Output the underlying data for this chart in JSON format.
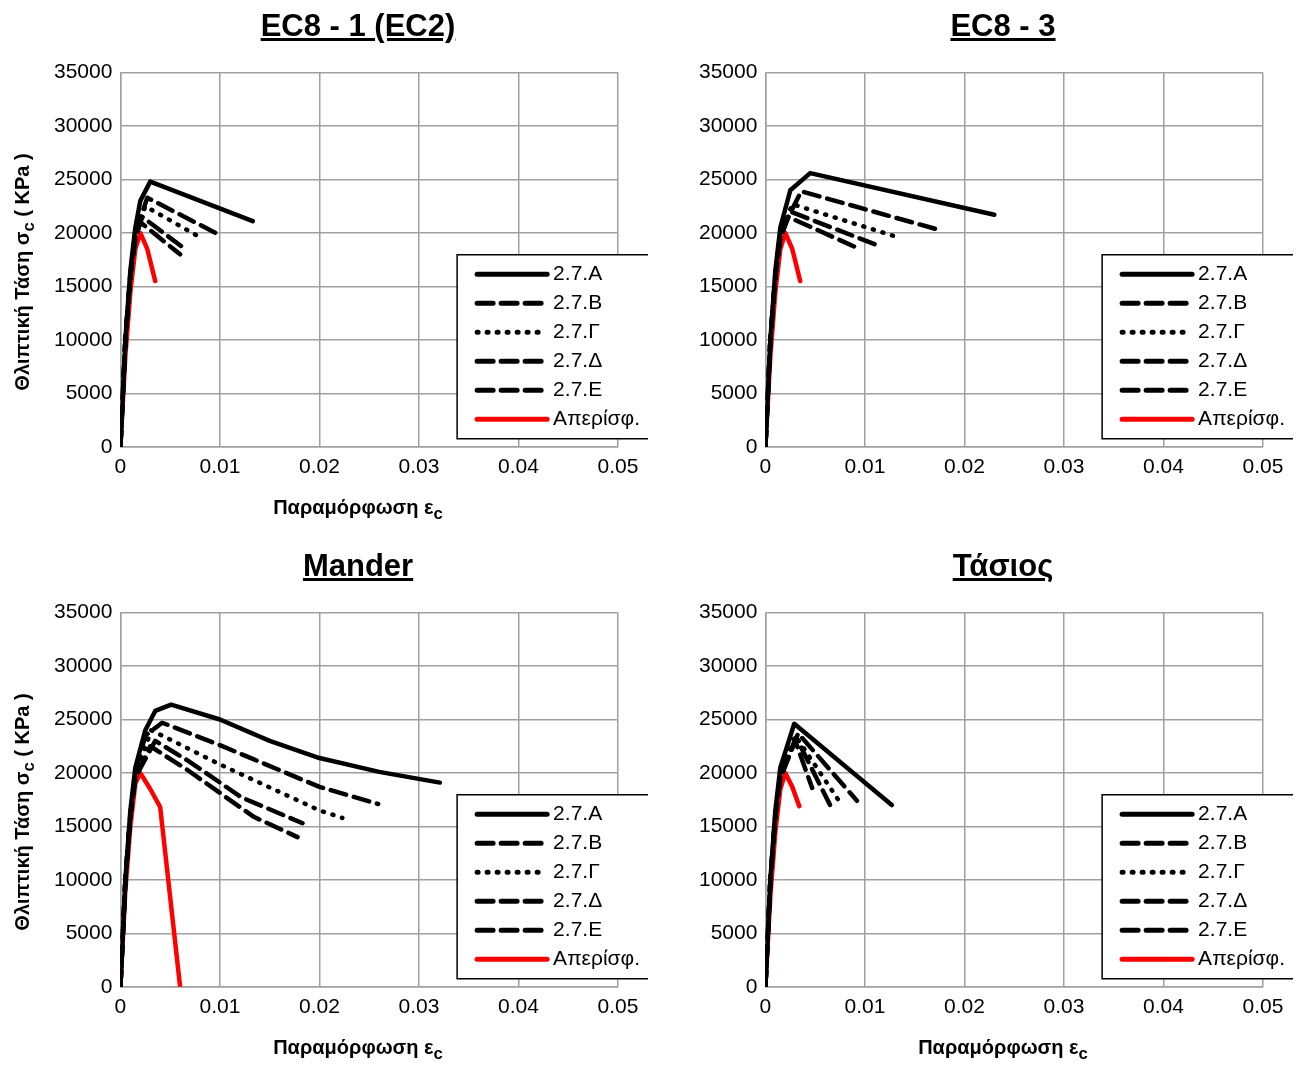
{
  "chart_data": [
    {
      "type": "line",
      "title": "EC8 - 1 (EC2)",
      "xlabel": "Παραμόρφωση ε$_{c}$",
      "ylabel": "Θλιπτική Τάση σ$_{c}$ ( KPa )",
      "xlim": [
        0,
        0.05
      ],
      "xticks": [
        0,
        0.01,
        0.02,
        0.03,
        0.04,
        0.05
      ],
      "ylim": [
        0,
        35000
      ],
      "yticks": [
        0,
        5000,
        10000,
        15000,
        20000,
        25000,
        30000,
        35000
      ],
      "grid": true,
      "legend": "bottom right",
      "series": [
        {
          "name": "2.7.A",
          "color": "#000000",
          "line_style": "solid",
          "x": [
            0,
            0.0005,
            0.001,
            0.0015,
            0.002,
            0.003,
            0.0133
          ],
          "values": [
            0,
            10000,
            16500,
            20500,
            23000,
            24800,
            21100
          ]
        },
        {
          "name": "2.7.B",
          "color": "#000000",
          "line_style": "dashed",
          "x": [
            0,
            0.0005,
            0.001,
            0.0015,
            0.0027,
            0.01
          ],
          "values": [
            0,
            10000,
            16000,
            20000,
            23300,
            19800
          ]
        },
        {
          "name": "2.7.Γ",
          "color": "#000000",
          "line_style": "dotted",
          "x": [
            0,
            0.0005,
            0.001,
            0.0015,
            0.0025,
            0.0078
          ],
          "values": [
            0,
            10000,
            16000,
            19800,
            22500,
            19700
          ]
        },
        {
          "name": "2.7.Δ",
          "color": "#000000",
          "line_style": "dashed",
          "x": [
            0,
            0.0005,
            0.001,
            0.0015,
            0.0022,
            0.0065
          ],
          "values": [
            0,
            10000,
            16000,
            19600,
            21500,
            18500
          ]
        },
        {
          "name": "2.7.Ε",
          "color": "#000000",
          "line_style": "dashed",
          "x": [
            0,
            0.0005,
            0.001,
            0.0015,
            0.002,
            0.006
          ],
          "values": [
            0,
            10000,
            16000,
            19500,
            21000,
            18000
          ]
        },
        {
          "name": "Απερίσφ.",
          "color": "#ff0000",
          "line_style": "solid",
          "x": [
            0,
            0.0005,
            0.001,
            0.0015,
            0.002,
            0.0027,
            0.0035
          ],
          "values": [
            0,
            8500,
            14500,
            18500,
            20000,
            18500,
            15500
          ]
        }
      ]
    },
    {
      "type": "line",
      "title": "EC8 - 3",
      "xlim": [
        0,
        0.05
      ],
      "xticks": [
        0,
        0.01,
        0.02,
        0.03,
        0.04,
        0.05
      ],
      "ylim": [
        0,
        35000
      ],
      "yticks": [
        0,
        5000,
        10000,
        15000,
        20000,
        25000,
        30000,
        35000
      ],
      "grid": true,
      "legend": "bottom right",
      "series": [
        {
          "name": "2.7.A",
          "color": "#000000",
          "line_style": "solid",
          "x": [
            0,
            0.0005,
            0.001,
            0.0015,
            0.0025,
            0.0045,
            0.023
          ],
          "values": [
            0,
            10000,
            16500,
            20500,
            24000,
            25600,
            21700
          ]
        },
        {
          "name": "2.7.B",
          "color": "#000000",
          "line_style": "dashed",
          "x": [
            0,
            0.0005,
            0.001,
            0.0015,
            0.0036,
            0.0174
          ],
          "values": [
            0,
            10000,
            16000,
            20000,
            23900,
            20300
          ]
        },
        {
          "name": "2.7.Γ",
          "color": "#000000",
          "line_style": "dotted",
          "x": [
            0,
            0.0005,
            0.001,
            0.0015,
            0.0027,
            0.0133
          ],
          "values": [
            0,
            10000,
            16000,
            19800,
            22700,
            19600
          ]
        },
        {
          "name": "2.7.Δ",
          "color": "#000000",
          "line_style": "dashed",
          "x": [
            0,
            0.0005,
            0.001,
            0.0015,
            0.0025,
            0.0114
          ],
          "values": [
            0,
            10000,
            16000,
            19600,
            22000,
            18800
          ]
        },
        {
          "name": "2.7.Ε",
          "color": "#000000",
          "line_style": "dashed",
          "x": [
            0,
            0.0005,
            0.001,
            0.0015,
            0.0023,
            0.009
          ],
          "values": [
            0,
            10000,
            16000,
            19500,
            21500,
            18700
          ]
        },
        {
          "name": "Απερίσφ.",
          "color": "#ff0000",
          "line_style": "solid",
          "x": [
            0,
            0.0005,
            0.001,
            0.0015,
            0.002,
            0.0027,
            0.0035
          ],
          "values": [
            0,
            8500,
            14500,
            18500,
            20000,
            18500,
            15500
          ]
        }
      ]
    },
    {
      "type": "line",
      "title": "Mander",
      "xlabel": "Παραμόρφωση ε$_{c}$",
      "ylabel": "Θλιπτική Τάση σ$_{c}$ ( KPa )",
      "xlim": [
        0,
        0.05
      ],
      "xticks": [
        0,
        0.01,
        0.02,
        0.03,
        0.04,
        0.05
      ],
      "ylim": [
        0,
        35000
      ],
      "yticks": [
        0,
        5000,
        10000,
        15000,
        20000,
        25000,
        30000,
        35000
      ],
      "grid": true,
      "legend": "bottom right",
      "series": [
        {
          "name": "2.7.A",
          "color": "#000000",
          "line_style": "solid",
          "x": [
            0,
            0.0005,
            0.001,
            0.0015,
            0.0025,
            0.0035,
            0.0051,
            0.01,
            0.015,
            0.02,
            0.026,
            0.0321
          ],
          "values": [
            0,
            10000,
            16500,
            20500,
            24000,
            25800,
            26400,
            25000,
            23000,
            21400,
            20100,
            19100
          ]
        },
        {
          "name": "2.7.B",
          "color": "#000000",
          "line_style": "dashed",
          "x": [
            0,
            0.0005,
            0.001,
            0.0015,
            0.0025,
            0.0042,
            0.01,
            0.02,
            0.0259
          ],
          "values": [
            0,
            10000,
            16000,
            20000,
            23500,
            24700,
            22600,
            18700,
            17100
          ]
        },
        {
          "name": "2.7.Γ",
          "color": "#000000",
          "line_style": "dotted",
          "x": [
            0,
            0.0005,
            0.001,
            0.0015,
            0.0031,
            0.01,
            0.02,
            0.0223
          ],
          "values": [
            0,
            10000,
            16000,
            19800,
            24000,
            20800,
            16500,
            15800
          ]
        },
        {
          "name": "2.7.Δ",
          "color": "#000000",
          "line_style": "dashed",
          "x": [
            0,
            0.0005,
            0.001,
            0.0015,
            0.0035,
            0.0067,
            0.0122,
            0.0183
          ],
          "values": [
            0,
            10000,
            16000,
            19600,
            23000,
            21200,
            17700,
            15300
          ]
        },
        {
          "name": "2.7.Ε",
          "color": "#000000",
          "line_style": "dashed",
          "x": [
            0,
            0.0005,
            0.001,
            0.0015,
            0.003,
            0.0067,
            0.0134,
            0.0178
          ],
          "values": [
            0,
            10000,
            16000,
            19500,
            22500,
            20300,
            15900,
            14000
          ]
        },
        {
          "name": "Απερίσφ.",
          "color": "#ff0000",
          "line_style": "solid",
          "x": [
            0,
            0.0005,
            0.001,
            0.0015,
            0.002,
            0.003,
            0.004,
            0.006
          ],
          "values": [
            0,
            9000,
            15000,
            19000,
            20000,
            18500,
            16800,
            0
          ]
        }
      ]
    },
    {
      "type": "line",
      "title": "Τάσιος",
      "xlabel": "Παραμόρφωση ε$_{c}$",
      "xlim": [
        0,
        0.05
      ],
      "xticks": [
        0,
        0.01,
        0.02,
        0.03,
        0.04,
        0.05
      ],
      "ylim": [
        0,
        35000
      ],
      "yticks": [
        0,
        5000,
        10000,
        15000,
        20000,
        25000,
        30000,
        35000
      ],
      "grid": true,
      "legend": "bottom right",
      "series": [
        {
          "name": "2.7.A",
          "color": "#000000",
          "line_style": "solid",
          "x": [
            0,
            0.0005,
            0.001,
            0.0015,
            0.0029,
            0.0127
          ],
          "values": [
            0,
            10000,
            16500,
            20500,
            24600,
            17000
          ]
        },
        {
          "name": "2.7.B",
          "color": "#000000",
          "line_style": "dashed",
          "x": [
            0,
            0.0005,
            0.001,
            0.0015,
            0.0033,
            0.0092
          ],
          "values": [
            0,
            10000,
            16000,
            20000,
            23700,
            17400
          ]
        },
        {
          "name": "2.7.Γ",
          "color": "#000000",
          "line_style": "dotted",
          "x": [
            0,
            0.0005,
            0.001,
            0.0015,
            0.003,
            0.0076
          ],
          "values": [
            0,
            10000,
            16000,
            19800,
            23500,
            17100
          ]
        },
        {
          "name": "2.7.Δ",
          "color": "#000000",
          "line_style": "dashed",
          "x": [
            0,
            0.0005,
            0.001,
            0.0015,
            0.0031,
            0.0065
          ],
          "values": [
            0,
            10000,
            16000,
            19600,
            23300,
            17000
          ]
        },
        {
          "name": "2.7.Ε",
          "color": "#000000",
          "line_style": "dashed",
          "x": [
            0,
            0.0005,
            0.001,
            0.0015,
            0.003,
            0.0047
          ],
          "values": [
            0,
            10000,
            16000,
            19500,
            23000,
            18600
          ]
        },
        {
          "name": "Απερίσφ.",
          "color": "#ff0000",
          "line_style": "solid",
          "x": [
            0,
            0.0005,
            0.001,
            0.0015,
            0.002,
            0.0027,
            0.0034
          ],
          "values": [
            0,
            8500,
            14500,
            18500,
            20000,
            18700,
            16900
          ]
        }
      ]
    }
  ]
}
